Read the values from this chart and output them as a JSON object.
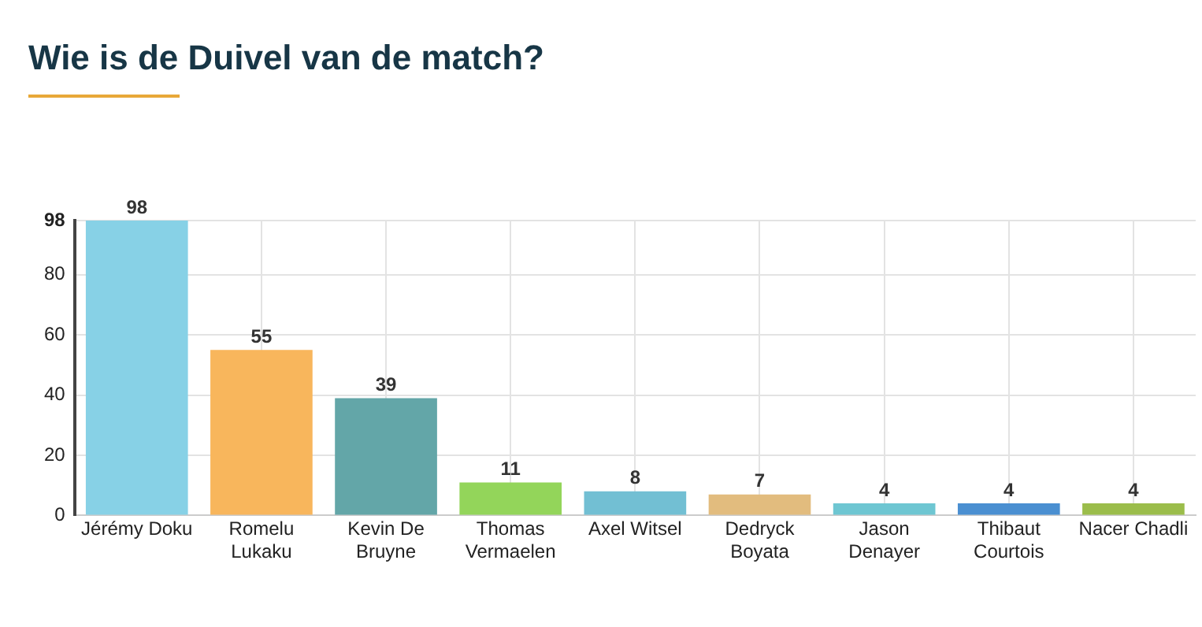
{
  "chart_data": {
    "type": "bar",
    "title": "Wie is de Duivel van de match?",
    "categories": [
      "Jérémy Doku",
      "Romelu Lukaku",
      "Kevin De Bruyne",
      "Thomas Vermaelen",
      "Axel Witsel",
      "Dedryck Boyata",
      "Jason Denayer",
      "Thibaut Courtois",
      "Nacer Chadli"
    ],
    "values": [
      98,
      55,
      39,
      11,
      8,
      7,
      4,
      4,
      4
    ],
    "colors": [
      "#87d1e6",
      "#f8b65c",
      "#63a6a8",
      "#93d55a",
      "#72bfd3",
      "#e2bc7e",
      "#6ec6d2",
      "#4a8fd1",
      "#9bbd4b"
    ],
    "ylim": [
      0,
      98
    ],
    "yticks": [
      0,
      20,
      40,
      60,
      80,
      98
    ],
    "grid": true,
    "data_labels": true
  }
}
